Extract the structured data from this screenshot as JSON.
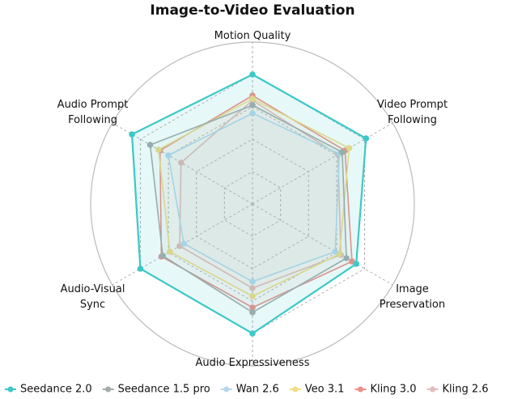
{
  "chart_data": {
    "type": "radar",
    "title": "Image-to-Video Evaluation",
    "categories": [
      "Motion Quality",
      "Video Prompt\nFollowing",
      "Image\nPreservation",
      "Audio Expressiveness",
      "Audio-Visual\nSync",
      "Audio Prompt\nFollowing"
    ],
    "rlim": [
      0,
      100
    ],
    "rticks": [
      20,
      40,
      60,
      80
    ],
    "grid": true,
    "legend": "bottom",
    "series": [
      {
        "name": "Seedance 2.0",
        "color": "#3cc8c8",
        "values": [
          80,
          81,
          74,
          80,
          80,
          86
        ]
      },
      {
        "name": "Seedance 1.5 pro",
        "color": "#a3abab",
        "values": [
          61,
          64,
          67,
          67,
          64,
          73
        ]
      },
      {
        "name": "Wan 2.6",
        "color": "#b5d8ee",
        "values": [
          56,
          62,
          59,
          48,
          49,
          60
        ]
      },
      {
        "name": "Veo 3.1",
        "color": "#f3dc82",
        "values": [
          65,
          69,
          62,
          57,
          59,
          67
        ]
      },
      {
        "name": "Kling 3.0",
        "color": "#ef8e86",
        "values": [
          67,
          66,
          71,
          64,
          65,
          66
        ]
      },
      {
        "name": "Kling 2.6",
        "color": "#e5bcbc",
        "values": [
          64,
          61,
          63,
          52,
          52,
          51
        ]
      }
    ]
  }
}
